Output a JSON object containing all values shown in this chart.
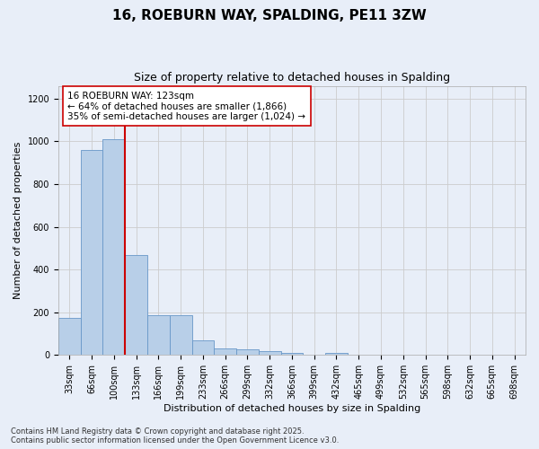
{
  "title1": "16, ROEBURN WAY, SPALDING, PE11 3ZW",
  "title2": "Size of property relative to detached houses in Spalding",
  "xlabel": "Distribution of detached houses by size in Spalding",
  "ylabel": "Number of detached properties",
  "categories": [
    "33sqm",
    "66sqm",
    "100sqm",
    "133sqm",
    "166sqm",
    "199sqm",
    "233sqm",
    "266sqm",
    "299sqm",
    "332sqm",
    "366sqm",
    "399sqm",
    "432sqm",
    "465sqm",
    "499sqm",
    "532sqm",
    "565sqm",
    "598sqm",
    "632sqm",
    "665sqm",
    "698sqm"
  ],
  "values": [
    175,
    960,
    1010,
    470,
    185,
    185,
    70,
    30,
    25,
    20,
    10,
    0,
    10,
    0,
    0,
    0,
    0,
    0,
    0,
    0,
    0
  ],
  "bar_color": "#b8cfe8",
  "bar_edge_color": "#6897c8",
  "vline_x": 2.5,
  "vline_color": "#cc0000",
  "annotation_text": "16 ROEBURN WAY: 123sqm\n← 64% of detached houses are smaller (1,866)\n35% of semi-detached houses are larger (1,024) →",
  "annotation_box_color": "#ffffff",
  "annotation_box_edge_color": "#cc0000",
  "ylim": [
    0,
    1260
  ],
  "yticks": [
    0,
    200,
    400,
    600,
    800,
    1000,
    1200
  ],
  "grid_color": "#cccccc",
  "plot_bg_color": "#e8eef8",
  "fig_bg_color": "#e8eef8",
  "footer1": "Contains HM Land Registry data © Crown copyright and database right 2025.",
  "footer2": "Contains public sector information licensed under the Open Government Licence v3.0.",
  "title_fontsize": 11,
  "subtitle_fontsize": 9,
  "axis_label_fontsize": 8,
  "tick_fontsize": 7,
  "annotation_fontsize": 7.5,
  "footer_fontsize": 6
}
